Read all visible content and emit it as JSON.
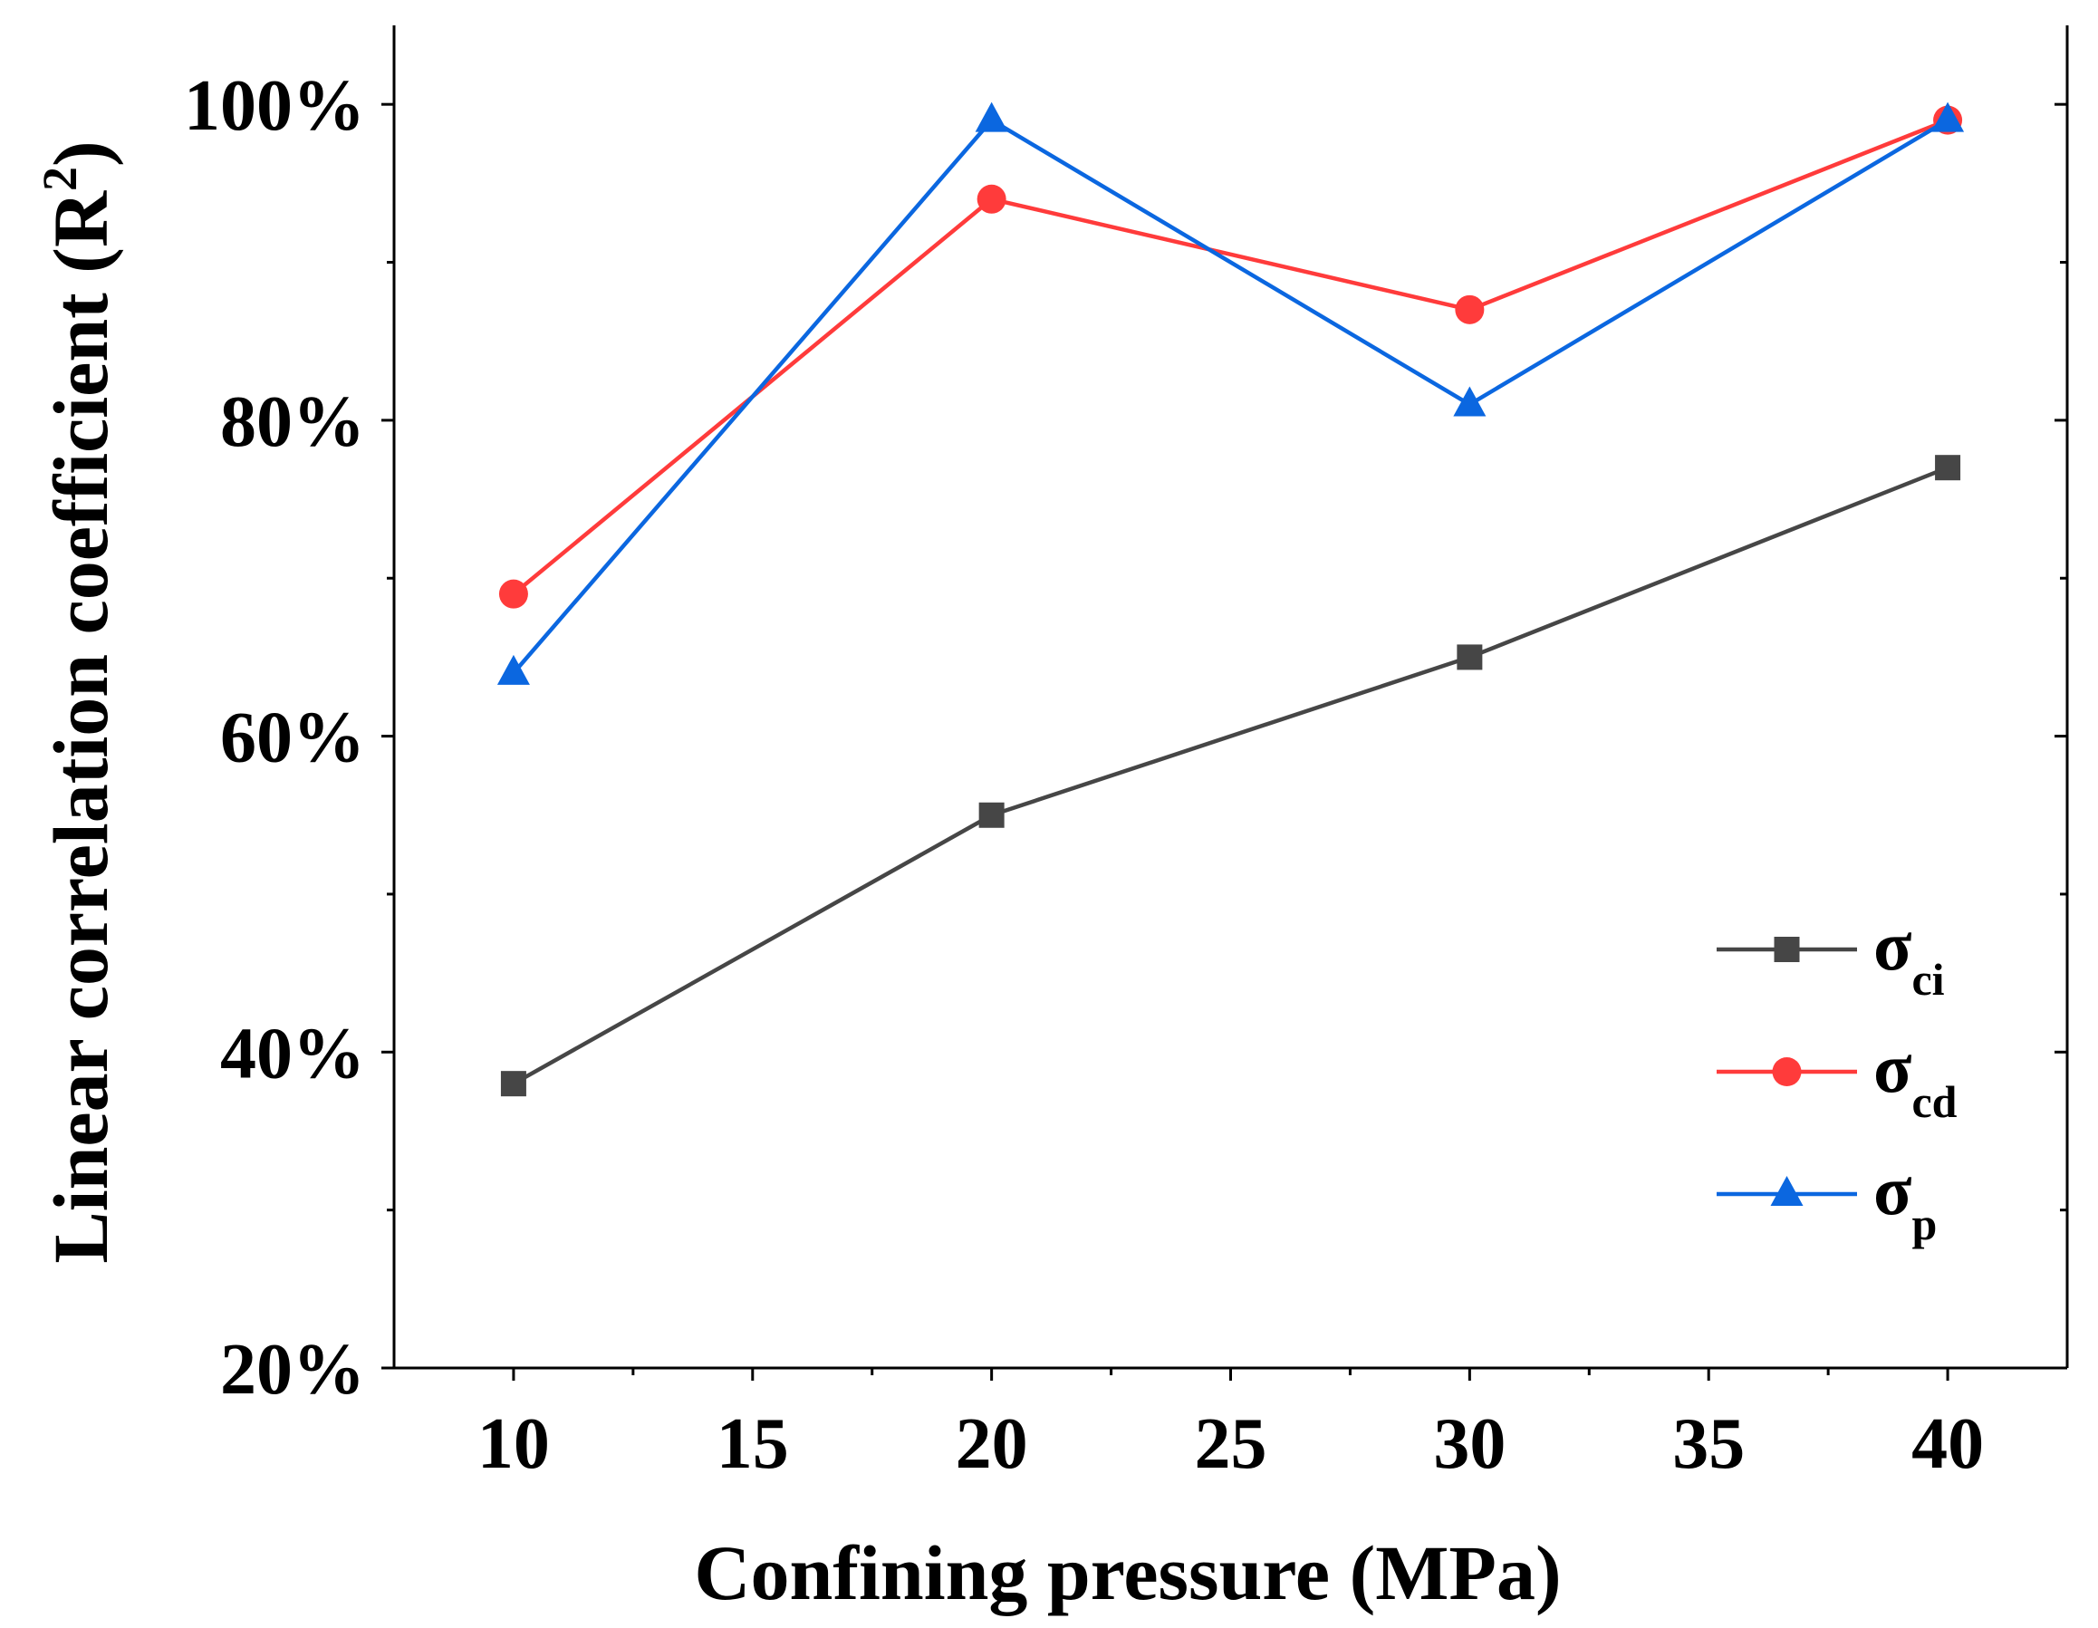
{
  "chart_data": {
    "type": "line",
    "title": "",
    "xlabel": "Confining pressure (MPa)",
    "ylabel": {
      "main": "Linear correlation coefficient (R",
      "sup": "2",
      "end": ")"
    },
    "xlim": [
      7.5,
      42.5
    ],
    "ylim": [
      20,
      105
    ],
    "x_ticks": [
      10,
      15,
      20,
      25,
      30,
      35,
      40
    ],
    "x_tick_labels": [
      "10",
      "15",
      "20",
      "25",
      "30",
      "35",
      "40"
    ],
    "y_ticks": [
      20,
      40,
      60,
      80,
      100
    ],
    "y_tick_labels": [
      "20%",
      "40%",
      "60%",
      "80%",
      "100%"
    ],
    "y_minor_ticks": [
      30,
      50,
      70,
      90
    ],
    "x_minor_ticks": [
      12.5,
      17.5,
      22.5,
      27.5,
      32.5,
      37.5
    ],
    "grid": false,
    "legend_position": "bottom-right",
    "x": [
      10,
      20,
      30,
      40
    ],
    "series": [
      {
        "name": "σci",
        "symbol": "σ",
        "subscript": "ci",
        "marker": "square",
        "color": "#464646",
        "values": [
          38,
          55,
          65,
          77
        ]
      },
      {
        "name": "σcd",
        "symbol": "σ",
        "subscript": "cd",
        "marker": "circle",
        "color": "#ff3b3b",
        "values": [
          69,
          94,
          87,
          99
        ]
      },
      {
        "name": "σp",
        "symbol": "σ",
        "subscript": "p",
        "marker": "triangle",
        "color": "#0b67e0",
        "values": [
          64,
          99,
          81,
          99
        ]
      }
    ]
  }
}
